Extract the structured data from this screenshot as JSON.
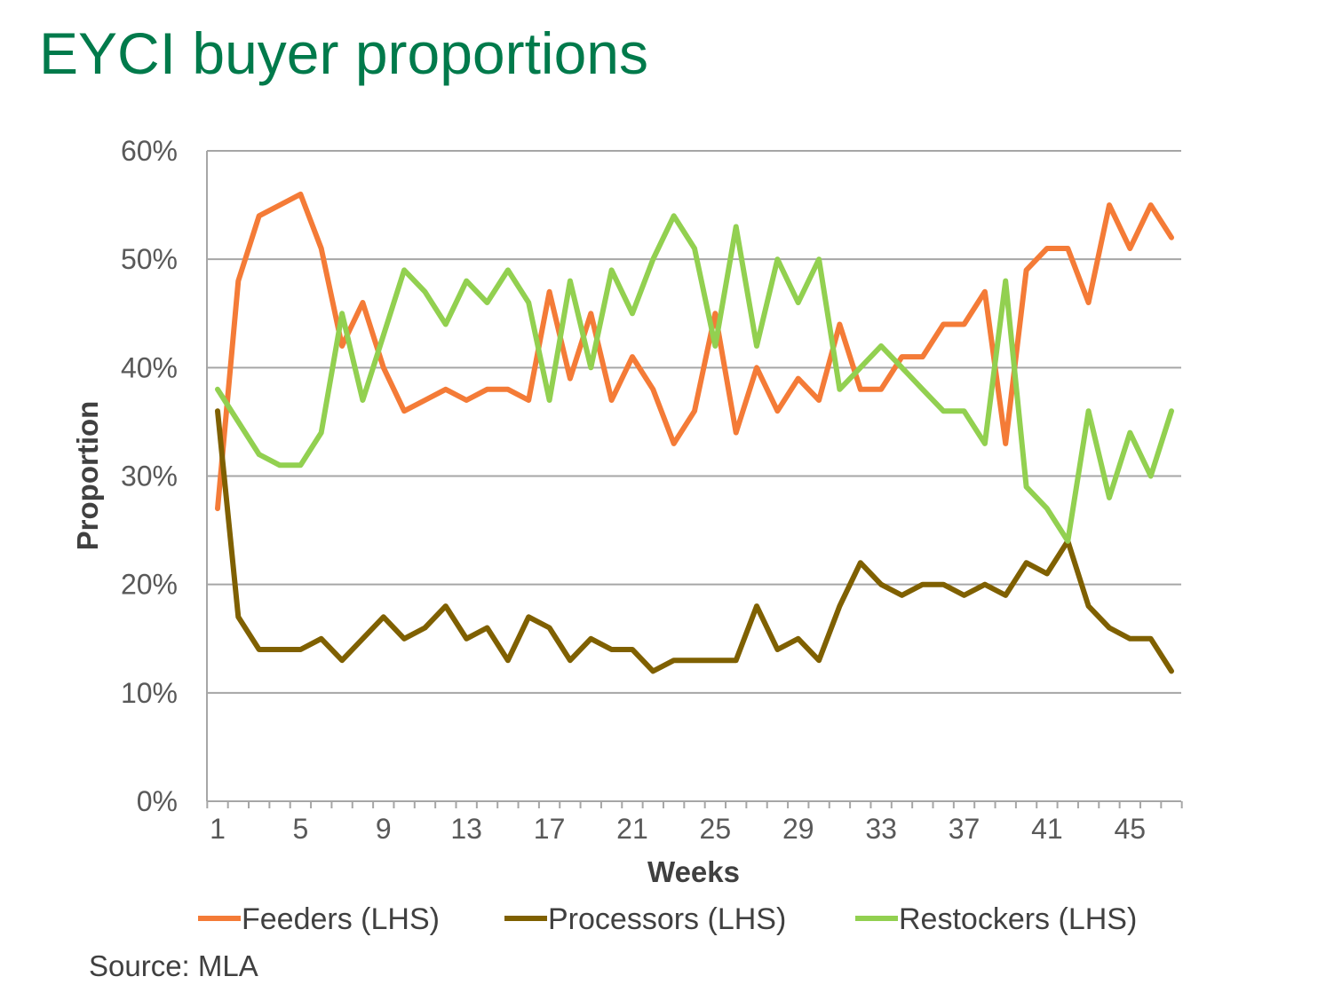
{
  "title": "EYCI buyer proportions",
  "source": "Source: MLA",
  "chart_data": {
    "type": "line",
    "title": "",
    "xlabel": "Weeks",
    "ylabel": "Proportion",
    "x": [
      1,
      2,
      3,
      4,
      5,
      6,
      7,
      8,
      9,
      10,
      11,
      12,
      13,
      14,
      15,
      16,
      17,
      18,
      19,
      20,
      21,
      22,
      23,
      24,
      25,
      26,
      27,
      28,
      29,
      30,
      31,
      32,
      33,
      34,
      35,
      36,
      37,
      38,
      39,
      40,
      41,
      42,
      43,
      44,
      45,
      46,
      47
    ],
    "xticks": [
      "1",
      "5",
      "9",
      "13",
      "17",
      "21",
      "25",
      "29",
      "33",
      "37",
      "41",
      "45"
    ],
    "ylim": [
      0,
      60
    ],
    "yticks": [
      "0%",
      "10%",
      "20%",
      "30%",
      "40%",
      "50%",
      "60%"
    ],
    "y_unit": "%",
    "grid": "horizontal",
    "legend_position": "bottom",
    "series": [
      {
        "name": "Feeders (LHS)",
        "color": "#f47b37",
        "values": [
          27,
          48,
          54,
          55,
          56,
          51,
          42,
          46,
          40,
          36,
          37,
          38,
          37,
          38,
          38,
          37,
          47,
          39,
          45,
          37,
          41,
          38,
          33,
          36,
          45,
          34,
          40,
          36,
          39,
          37,
          44,
          38,
          38,
          41,
          41,
          44,
          44,
          47,
          33,
          49,
          51,
          51,
          46,
          55,
          51,
          55,
          52
        ]
      },
      {
        "name": "Processors (LHS)",
        "color": "#7f6000",
        "values": [
          36,
          17,
          14,
          14,
          14,
          15,
          13,
          15,
          17,
          15,
          16,
          18,
          15,
          16,
          13,
          17,
          16,
          13,
          15,
          14,
          14,
          12,
          13,
          13,
          13,
          13,
          18,
          14,
          15,
          13,
          18,
          22,
          20,
          19,
          20,
          20,
          19,
          20,
          19,
          22,
          21,
          24,
          18,
          16,
          15,
          15,
          12
        ]
      },
      {
        "name": "Restockers (LHS)",
        "color": "#92d050",
        "values": [
          38,
          35,
          32,
          31,
          31,
          34,
          45,
          37,
          43,
          49,
          47,
          44,
          48,
          46,
          49,
          46,
          37,
          48,
          40,
          49,
          45,
          50,
          54,
          51,
          42,
          53,
          42,
          50,
          46,
          50,
          38,
          40,
          42,
          40,
          38,
          36,
          36,
          33,
          48,
          29,
          27,
          24,
          36,
          28,
          34,
          30,
          36
        ]
      }
    ]
  }
}
